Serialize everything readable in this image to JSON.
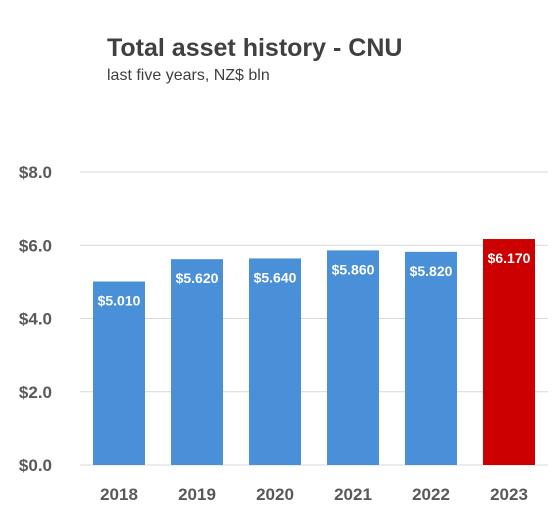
{
  "chart_data": {
    "type": "bar",
    "title": "Total asset history - CNU",
    "subtitle": "last five years, NZ$ bln",
    "categories": [
      "2018",
      "2019",
      "2020",
      "2021",
      "2022",
      "2023"
    ],
    "values": [
      5.01,
      5.62,
      5.64,
      5.86,
      5.82,
      6.17
    ],
    "data_labels": [
      "$5.010",
      "$5.620",
      "$5.640",
      "$5.860",
      "$5.820",
      "$6.170"
    ],
    "ylim": [
      0,
      8
    ],
    "yticks": [
      0,
      2,
      4,
      6,
      8
    ],
    "ytick_labels": [
      "$0.0",
      "$2.0",
      "$4.0",
      "$6.0",
      "$8.0"
    ],
    "xlabel": "",
    "ylabel": "",
    "grid": true,
    "legend": "none",
    "colors": {
      "bar": "#4a90d9",
      "highlight": "#cc0000",
      "grid": "#d9d9d9"
    },
    "highlight_index": 5
  }
}
